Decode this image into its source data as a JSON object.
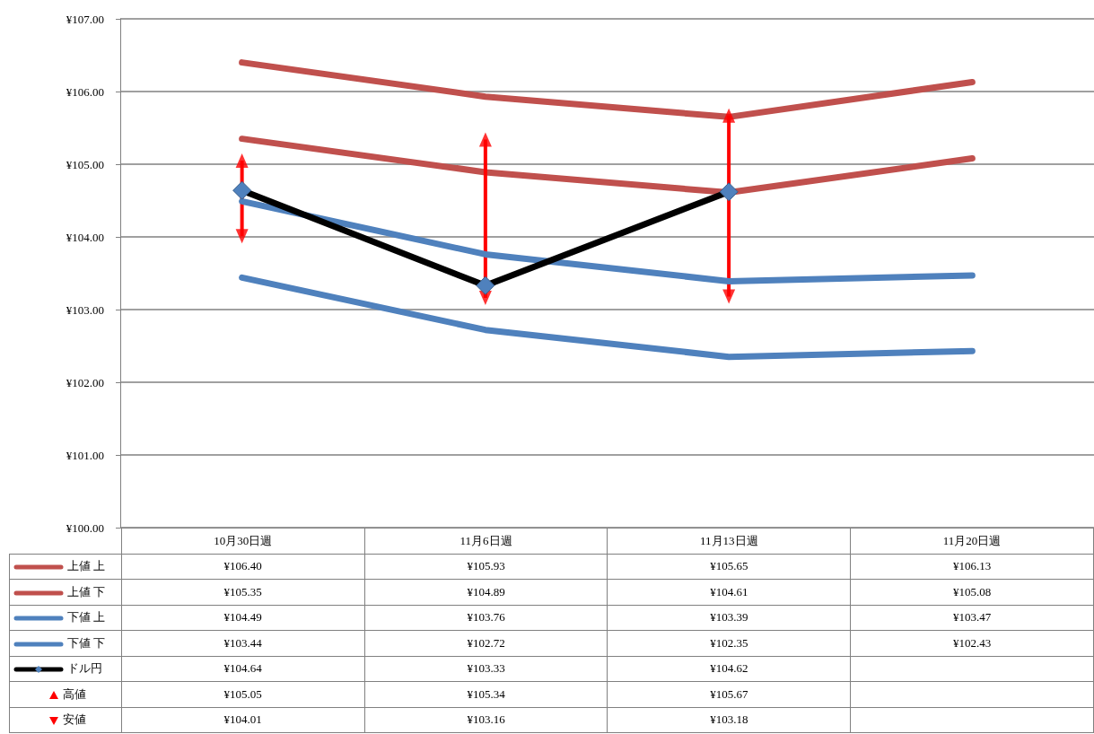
{
  "chart_data": {
    "type": "line",
    "categories": [
      "10月30日週",
      "11月6日週",
      "11月13日週",
      "11月20日週"
    ],
    "ylim": [
      100,
      107
    ],
    "yticks": [
      {
        "value": 100,
        "label": "¥100.00"
      },
      {
        "value": 101,
        "label": "¥101.00"
      },
      {
        "value": 102,
        "label": "¥102.00"
      },
      {
        "value": 103,
        "label": "¥103.00"
      },
      {
        "value": 104,
        "label": "¥104.00"
      },
      {
        "value": 105,
        "label": "¥105.00"
      },
      {
        "value": 106,
        "label": "¥106.00"
      },
      {
        "value": 107,
        "label": "¥107.00"
      }
    ],
    "grid": "y",
    "legend": "bottom",
    "line_style": "solid",
    "marker": "none",
    "series": [
      {
        "name": "上値 上",
        "color": "#c0504d",
        "values": [
          106.4,
          105.93,
          105.65,
          106.13
        ],
        "value_labels": [
          "¥106.40",
          "¥105.93",
          "¥105.65",
          "¥106.13"
        ]
      },
      {
        "name": "上値 下",
        "color": "#c0504d",
        "values": [
          105.35,
          104.89,
          104.61,
          105.08
        ],
        "value_labels": [
          "¥105.35",
          "¥104.89",
          "¥104.61",
          "¥105.08"
        ]
      },
      {
        "name": "下値 上",
        "color": "#4f81bd",
        "values": [
          104.49,
          103.76,
          103.39,
          103.47
        ],
        "value_labels": [
          "¥104.49",
          "¥103.76",
          "¥103.39",
          "¥103.47"
        ]
      },
      {
        "name": "下値 下",
        "color": "#4f81bd",
        "values": [
          103.44,
          102.72,
          102.35,
          102.43
        ],
        "value_labels": [
          "¥103.44",
          "¥102.72",
          "¥102.35",
          "¥102.43"
        ]
      },
      {
        "name": "ドル円",
        "color": "#000000",
        "marker": "diamond",
        "values": [
          104.64,
          103.33,
          104.62,
          null
        ],
        "value_labels": [
          "¥104.64",
          "¥103.33",
          "¥104.62",
          null
        ]
      },
      {
        "name": "高値",
        "type": "scatter",
        "color": "#ff0000",
        "marker": "triangle",
        "values": [
          105.05,
          105.34,
          105.67,
          null
        ],
        "value_labels": [
          "¥105.05",
          "¥105.34",
          "¥105.67",
          null
        ]
      },
      {
        "name": "安値",
        "type": "scatter",
        "color": "#ff0000",
        "marker": "triangle",
        "values": [
          104.01,
          103.16,
          103.18,
          null
        ],
        "value_labels": [
          "¥104.01",
          "¥103.16",
          "¥103.18",
          null
        ]
      }
    ]
  }
}
